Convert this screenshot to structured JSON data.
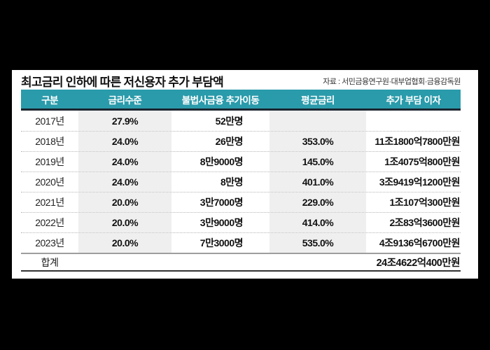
{
  "page": {
    "background_color": "#000000",
    "card_background_color": "#ffffff"
  },
  "header": {
    "title": "최고금리 인하에 따른 저신용자 추가 부담액",
    "source": "자료 : 서민금융연구원·대부업협회·금융감독원"
  },
  "colors": {
    "table_header_bg": "#2a9bab",
    "table_header_text": "#ffffff",
    "table_header_border": "#1b2630",
    "shaded_column_bg": "#efefef",
    "row_divider_dotted": "#b5b5b5",
    "total_divider": "#9e9e9e",
    "table_bottom_border": "#333333"
  },
  "chart_data": {
    "type": "table",
    "title": "최고금리 인하에 따른 저신용자 추가 부담액",
    "source": "자료 : 서민금융연구원·대부업협회·금융감독원",
    "columns": [
      "구분",
      "금리수준",
      "불법사금융 추가이동",
      "평균금리",
      "추가 부담 이자"
    ],
    "rows": [
      [
        "2017년",
        "27.9%",
        "52만명",
        "",
        ""
      ],
      [
        "2018년",
        "24.0%",
        "26만명",
        "353.0%",
        "11조1800억7800만원"
      ],
      [
        "2019년",
        "24.0%",
        "8만9000명",
        "145.0%",
        "1조4075억800만원"
      ],
      [
        "2020년",
        "24.0%",
        "8만명",
        "401.0%",
        "3조9419억1200만원"
      ],
      [
        "2021년",
        "20.0%",
        "3만7000명",
        "229.0%",
        "1조107억300만원"
      ],
      [
        "2022년",
        "20.0%",
        "3만9000명",
        "414.0%",
        "2조83억3600만원"
      ],
      [
        "2023년",
        "20.0%",
        "7만3000명",
        "535.0%",
        "4조9136억6700만원"
      ]
    ],
    "total_row": {
      "label": "합계",
      "value": "24조4622억400만원"
    }
  }
}
